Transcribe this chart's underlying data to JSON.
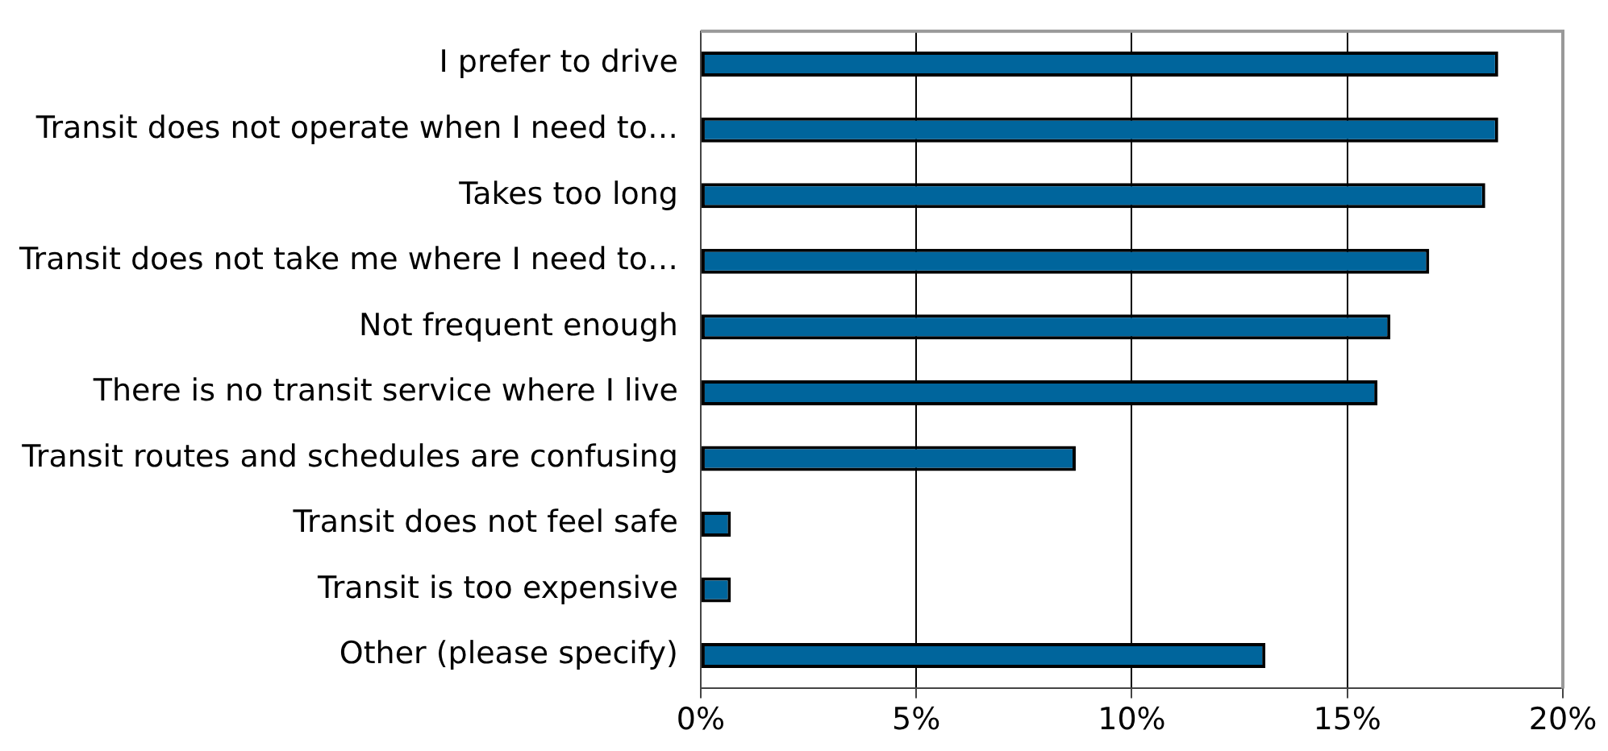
{
  "chart_data": {
    "type": "bar",
    "orientation": "horizontal",
    "categories": [
      "I prefer to drive",
      "Transit does not operate when I need to…",
      "Takes too long",
      "Transit does not take me where I need to…",
      "Not frequent enough",
      "There is no transit service where I live",
      "Transit routes and schedules are confusing",
      "Transit does not feel safe",
      "Transit is too expensive",
      "Other (please specify)"
    ],
    "values": [
      18.5,
      18.5,
      18.2,
      16.9,
      16.0,
      15.7,
      8.7,
      0.7,
      0.7,
      13.1
    ],
    "color": "#00659c",
    "xlim": [
      0,
      20
    ],
    "xticks": [
      {
        "value": 0,
        "label": "0%"
      },
      {
        "value": 5,
        "label": "5%"
      },
      {
        "value": 10,
        "label": "10%"
      },
      {
        "value": 15,
        "label": "15%"
      },
      {
        "value": 20,
        "label": "20%"
      }
    ],
    "grid": "x",
    "legend": false
  }
}
